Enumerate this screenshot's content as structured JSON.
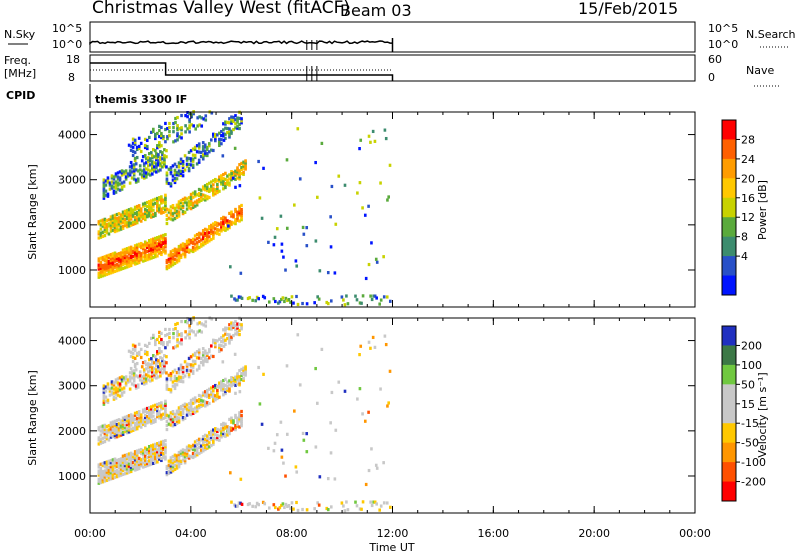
{
  "header": {
    "title": "Christmas Valley West (fitACF)",
    "beam": "Beam 03",
    "date": "15/Feb/2015"
  },
  "panels": {
    "nsky": {
      "label": "N.Sky",
      "right_label": "N.Search",
      "ticks": [
        "10^5",
        "10^0"
      ]
    },
    "freq": {
      "label_line1": "Freq.",
      "label_line2": "[MHz]",
      "right_label": "Nave",
      "left_ticks": [
        "18",
        "8"
      ],
      "right_ticks": [
        "60",
        "0"
      ]
    },
    "cpid": {
      "label": "CPID",
      "program": "themis 3300 IF"
    }
  },
  "chart_data": [
    {
      "type": "heatmap",
      "name": "power",
      "ylabel": "Slant Range [km]",
      "ylim": [
        180,
        4500
      ],
      "xlim": [
        "00:00",
        "24:00"
      ],
      "y_ticks": [
        "1000",
        "2000",
        "3000",
        "4000"
      ],
      "colorbar_label": "Power [dB]",
      "colorbar_ticks": [
        "28",
        "24",
        "20",
        "16",
        "12",
        "8",
        "4"
      ],
      "colorbar_colors": [
        "#ff0000",
        "#ff6000",
        "#ff9c00",
        "#ffc800",
        "#c8d200",
        "#5aaa3c",
        "#3c8c6e",
        "#2850c8",
        "#0014ff"
      ]
    },
    {
      "type": "heatmap",
      "name": "velocity",
      "ylabel": "Slant Range [km]",
      "ylim": [
        180,
        4500
      ],
      "xlim": [
        "00:00",
        "24:00"
      ],
      "y_ticks": [
        "1000",
        "2000",
        "3000",
        "4000"
      ],
      "colorbar_label": "Velocity [m s⁻¹]",
      "colorbar_ticks": [
        "200",
        "100",
        "50",
        "15",
        "-15",
        "-50",
        "-100",
        "-200"
      ],
      "colorbar_colors": [
        "#2030c0",
        "#3c7846",
        "#70c840",
        "#c8c8c8",
        "#c8c8c8",
        "#ffc800",
        "#ff9600",
        "#ff5000",
        "#ff0000"
      ]
    }
  ],
  "x_axis": {
    "label": "Time UT",
    "ticks": [
      "00:00",
      "04:00",
      "08:00",
      "12:00",
      "16:00",
      "20:00",
      "00:00"
    ]
  }
}
